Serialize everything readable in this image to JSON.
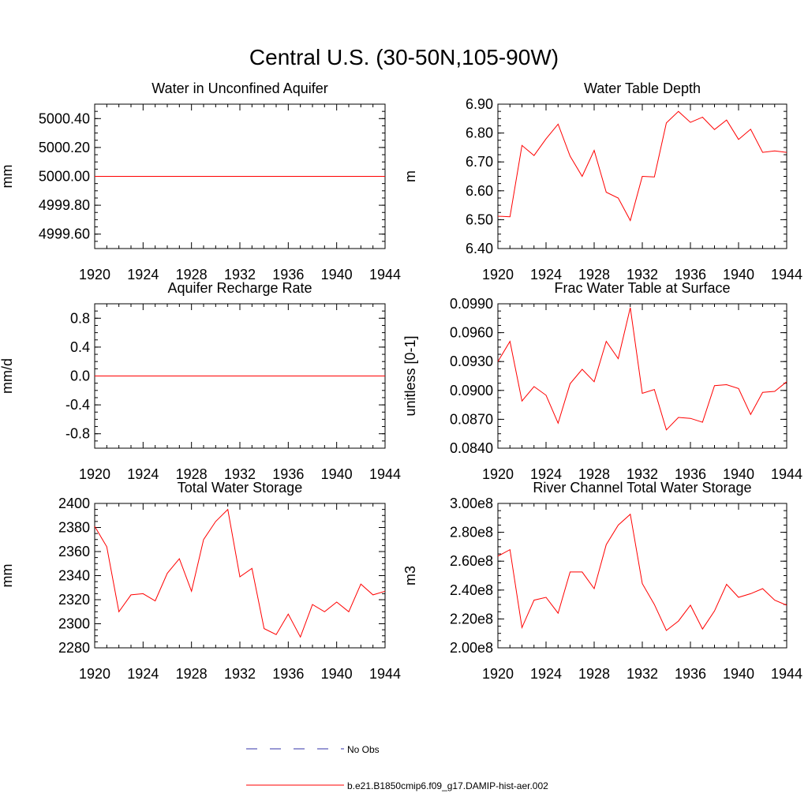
{
  "figure": {
    "title": "Central U.S. (30-50N,105-90W)"
  },
  "legend": {
    "entries": [
      {
        "label": "No Obs",
        "color": "#3333aa",
        "style": "dashed"
      },
      {
        "label": "b.e21.B1850cmip6.f09_g17.DAMIP-hist-aer.002",
        "color": "#ff0000",
        "style": "solid"
      }
    ]
  },
  "chart_data": [
    {
      "type": "line",
      "title": "Water in Unconfined Aquifer",
      "ylabel": "mm",
      "xlim": [
        1920,
        1944
      ],
      "xticks": [
        "1920",
        "1924",
        "1928",
        "1932",
        "1936",
        "1940",
        "1944"
      ],
      "ylim": [
        4999.5,
        5000.5
      ],
      "yticks": [
        "4999.60",
        "4999.80",
        "5000.00",
        "5000.20",
        "5000.40"
      ],
      "series": [
        {
          "color": "#ff0000",
          "x": [
            1920,
            1921,
            1922,
            1923,
            1924,
            1925,
            1926,
            1927,
            1928,
            1929,
            1930,
            1931,
            1932,
            1933,
            1934,
            1935,
            1936,
            1937,
            1938,
            1939,
            1940,
            1941,
            1942,
            1943,
            1944
          ],
          "y": [
            5000,
            5000,
            5000,
            5000,
            5000,
            5000,
            5000,
            5000,
            5000,
            5000,
            5000,
            5000,
            5000,
            5000,
            5000,
            5000,
            5000,
            5000,
            5000,
            5000,
            5000,
            5000,
            5000,
            5000,
            5000
          ]
        }
      ]
    },
    {
      "type": "line",
      "title": "Water Table Depth",
      "ylabel": "m",
      "xlim": [
        1920,
        1944
      ],
      "xticks": [
        "1920",
        "1924",
        "1928",
        "1932",
        "1936",
        "1940",
        "1944"
      ],
      "ylim": [
        6.4,
        6.9
      ],
      "yticks": [
        "6.40",
        "6.50",
        "6.60",
        "6.70",
        "6.80",
        "6.90"
      ],
      "series": [
        {
          "color": "#ff0000",
          "x": [
            1920,
            1921,
            1922,
            1923,
            1924,
            1925,
            1926,
            1927,
            1928,
            1929,
            1930,
            1931,
            1932,
            1933,
            1934,
            1935,
            1936,
            1937,
            1938,
            1939,
            1940,
            1941,
            1942,
            1943,
            1944
          ],
          "y": [
            6.512,
            6.51,
            6.757,
            6.722,
            6.78,
            6.831,
            6.72,
            6.65,
            6.74,
            6.595,
            6.575,
            6.497,
            6.65,
            6.648,
            6.835,
            6.875,
            6.837,
            6.855,
            6.812,
            6.845,
            6.778,
            6.813,
            6.733,
            6.738,
            6.733
          ]
        }
      ]
    },
    {
      "type": "line",
      "title": "Aquifer Recharge Rate",
      "ylabel": "mm/d",
      "xlim": [
        1920,
        1944
      ],
      "xticks": [
        "1920",
        "1924",
        "1928",
        "1932",
        "1936",
        "1940",
        "1944"
      ],
      "ylim": [
        -1.0,
        1.0
      ],
      "yticks": [
        "-0.8",
        "-0.4",
        "0.0",
        "0.4",
        "0.8"
      ],
      "series": [
        {
          "color": "#ff0000",
          "x": [
            1920,
            1921,
            1922,
            1923,
            1924,
            1925,
            1926,
            1927,
            1928,
            1929,
            1930,
            1931,
            1932,
            1933,
            1934,
            1935,
            1936,
            1937,
            1938,
            1939,
            1940,
            1941,
            1942,
            1943,
            1944
          ],
          "y": [
            0,
            0,
            0,
            0,
            0,
            0,
            0,
            0,
            0,
            0,
            0,
            0,
            0,
            0,
            0,
            0,
            0,
            0,
            0,
            0,
            0,
            0,
            0,
            0,
            0
          ]
        }
      ]
    },
    {
      "type": "line",
      "title": "Frac Water Table at Surface",
      "ylabel": "unitless [0-1]",
      "xlim": [
        1920,
        1944
      ],
      "xticks": [
        "1920",
        "1924",
        "1928",
        "1932",
        "1936",
        "1940",
        "1944"
      ],
      "ylim": [
        0.084,
        0.099
      ],
      "yticks": [
        "0.0840",
        "0.0870",
        "0.0900",
        "0.0930",
        "0.0960",
        "0.0990"
      ],
      "series": [
        {
          "color": "#ff0000",
          "x": [
            1920,
            1921,
            1922,
            1923,
            1924,
            1925,
            1926,
            1927,
            1928,
            1929,
            1930,
            1931,
            1932,
            1933,
            1934,
            1935,
            1936,
            1937,
            1938,
            1939,
            1940,
            1941,
            1942,
            1943,
            1944
          ],
          "y": [
            0.093,
            0.0951,
            0.0889,
            0.0904,
            0.0895,
            0.0866,
            0.0907,
            0.0922,
            0.0909,
            0.0951,
            0.0933,
            0.0986,
            0.0897,
            0.0901,
            0.0859,
            0.0872,
            0.0871,
            0.0867,
            0.0905,
            0.0906,
            0.0902,
            0.0875,
            0.0898,
            0.0899,
            0.0909
          ]
        }
      ]
    },
    {
      "type": "line",
      "title": "Total Water Storage",
      "ylabel": "mm",
      "xlim": [
        1920,
        1944
      ],
      "xticks": [
        "1920",
        "1924",
        "1928",
        "1932",
        "1936",
        "1940",
        "1944"
      ],
      "ylim": [
        2280,
        2400
      ],
      "yticks": [
        "2280",
        "2300",
        "2320",
        "2340",
        "2360",
        "2380",
        "2400"
      ],
      "series": [
        {
          "color": "#ff0000",
          "x": [
            1920,
            1921,
            1922,
            1923,
            1924,
            1925,
            1926,
            1927,
            1928,
            1929,
            1930,
            1931,
            1932,
            1933,
            1934,
            1935,
            1936,
            1937,
            1938,
            1939,
            1940,
            1941,
            1942,
            1943,
            1944
          ],
          "y": [
            2381,
            2364,
            2310,
            2324,
            2325,
            2319,
            2342,
            2354,
            2327,
            2370,
            2385,
            2395,
            2339,
            2346,
            2296,
            2291,
            2308,
            2289,
            2316,
            2310,
            2318,
            2310,
            2333,
            2324,
            2327
          ]
        }
      ]
    },
    {
      "type": "line",
      "title": "River Channel Total Water Storage",
      "ylabel": "m3",
      "xlim": [
        1920,
        1944
      ],
      "xticks": [
        "1920",
        "1924",
        "1928",
        "1932",
        "1936",
        "1940",
        "1944"
      ],
      "ylim": [
        200000000,
        300000000
      ],
      "yticks": [
        "2.00e8",
        "2.20e8",
        "2.40e8",
        "2.60e8",
        "2.80e8",
        "3.00e8"
      ],
      "series": [
        {
          "color": "#ff0000",
          "x": [
            1920,
            1921,
            1922,
            1923,
            1924,
            1925,
            1926,
            1927,
            1928,
            1929,
            1930,
            1931,
            1932,
            1933,
            1934,
            1935,
            1936,
            1937,
            1938,
            1939,
            1940,
            1941,
            1942,
            1943,
            1944
          ],
          "y": [
            263500000,
            268000000,
            214000000,
            233000000,
            235000000,
            224000000,
            252500000,
            252500000,
            241000000,
            271500000,
            285000000,
            292500000,
            244500000,
            230000000,
            212000000,
            218500000,
            229500000,
            213000000,
            225500000,
            244000000,
            235000000,
            237500000,
            241000000,
            233000000,
            229500000
          ]
        }
      ]
    }
  ]
}
